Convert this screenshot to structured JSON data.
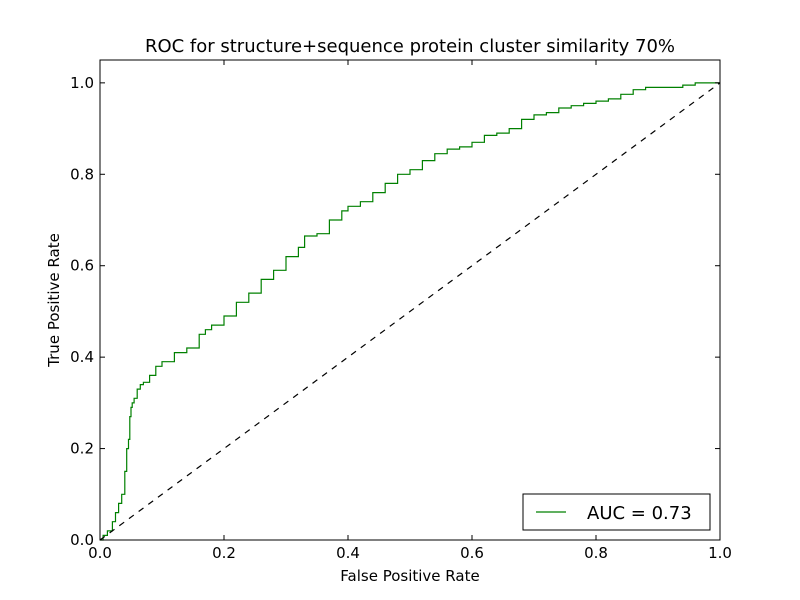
{
  "chart_data": {
    "type": "line",
    "title": "ROC for structure+sequence protein cluster similarity 70%",
    "xlabel": "False Positive Rate",
    "ylabel": "True Positive Rate",
    "xlim": [
      0.0,
      1.0
    ],
    "ylim": [
      0.0,
      1.05
    ],
    "xticks": [
      0.0,
      0.2,
      0.4,
      0.6,
      0.8,
      1.0
    ],
    "xtick_labels": [
      "0.0",
      "0.2",
      "0.4",
      "0.6",
      "0.8",
      "1.0"
    ],
    "yticks": [
      0.0,
      0.2,
      0.4,
      0.6,
      0.8,
      1.0
    ],
    "ytick_labels": [
      "0.0",
      "0.2",
      "0.4",
      "0.6",
      "0.8",
      "1.0"
    ],
    "grid": false,
    "legend_position": "lower-right",
    "series": [
      {
        "name": "AUC = 0.73",
        "color": "#008000",
        "style": "solid",
        "x": [
          0.0,
          0.005,
          0.012,
          0.02,
          0.025,
          0.03,
          0.035,
          0.04,
          0.043,
          0.046,
          0.048,
          0.05,
          0.052,
          0.055,
          0.06,
          0.065,
          0.07,
          0.08,
          0.09,
          0.1,
          0.12,
          0.14,
          0.16,
          0.17,
          0.18,
          0.2,
          0.22,
          0.24,
          0.26,
          0.28,
          0.3,
          0.32,
          0.33,
          0.35,
          0.37,
          0.39,
          0.4,
          0.42,
          0.44,
          0.46,
          0.48,
          0.5,
          0.52,
          0.54,
          0.56,
          0.58,
          0.6,
          0.62,
          0.64,
          0.66,
          0.68,
          0.7,
          0.72,
          0.74,
          0.76,
          0.78,
          0.8,
          0.82,
          0.84,
          0.86,
          0.88,
          0.9,
          0.92,
          0.94,
          0.96,
          0.98,
          1.0
        ],
        "y": [
          0.0,
          0.01,
          0.02,
          0.04,
          0.06,
          0.08,
          0.1,
          0.15,
          0.2,
          0.22,
          0.27,
          0.29,
          0.3,
          0.31,
          0.33,
          0.34,
          0.345,
          0.36,
          0.38,
          0.39,
          0.41,
          0.42,
          0.45,
          0.46,
          0.47,
          0.49,
          0.52,
          0.54,
          0.57,
          0.59,
          0.62,
          0.64,
          0.665,
          0.67,
          0.7,
          0.72,
          0.73,
          0.74,
          0.76,
          0.78,
          0.8,
          0.81,
          0.83,
          0.845,
          0.855,
          0.86,
          0.87,
          0.885,
          0.89,
          0.9,
          0.92,
          0.93,
          0.935,
          0.945,
          0.95,
          0.955,
          0.96,
          0.965,
          0.975,
          0.985,
          0.99,
          0.99,
          0.99,
          0.995,
          1.0,
          1.0,
          1.0
        ]
      },
      {
        "color": "#000000",
        "style": "dashed",
        "x": [
          0.0,
          1.0
        ],
        "y": [
          0.0,
          1.0
        ]
      }
    ]
  }
}
